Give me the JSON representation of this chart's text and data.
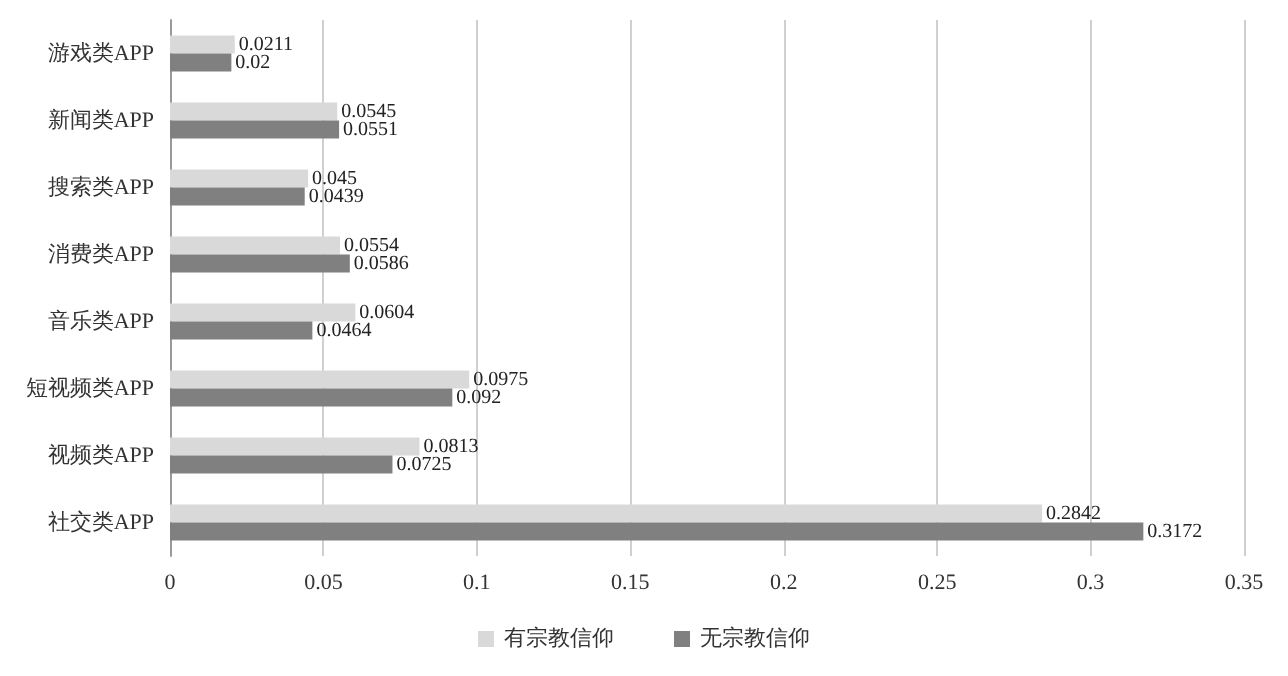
{
  "chart_data": {
    "type": "bar",
    "orientation": "horizontal",
    "categories": [
      "游戏类APP",
      "新闻类APP",
      "搜索类APP",
      "消费类APP",
      "音乐类APP",
      "短视频类APP",
      "视频类APP",
      "社交类APP"
    ],
    "series": [
      {
        "name": "有宗教信仰",
        "color": "#d9d9d9",
        "values": [
          0.0211,
          0.0545,
          0.045,
          0.0554,
          0.0604,
          0.0975,
          0.0813,
          0.2842
        ]
      },
      {
        "name": "无宗教信仰",
        "color": "#808080",
        "values": [
          0.02,
          0.0551,
          0.0439,
          0.0586,
          0.0464,
          0.092,
          0.0725,
          0.3172
        ]
      }
    ],
    "xlim": [
      0,
      0.35
    ],
    "xticks": [
      0,
      0.05,
      0.1,
      0.15,
      0.2,
      0.25,
      0.3,
      0.35
    ],
    "grid": "x",
    "legend": "bottom",
    "data_labels": true
  }
}
